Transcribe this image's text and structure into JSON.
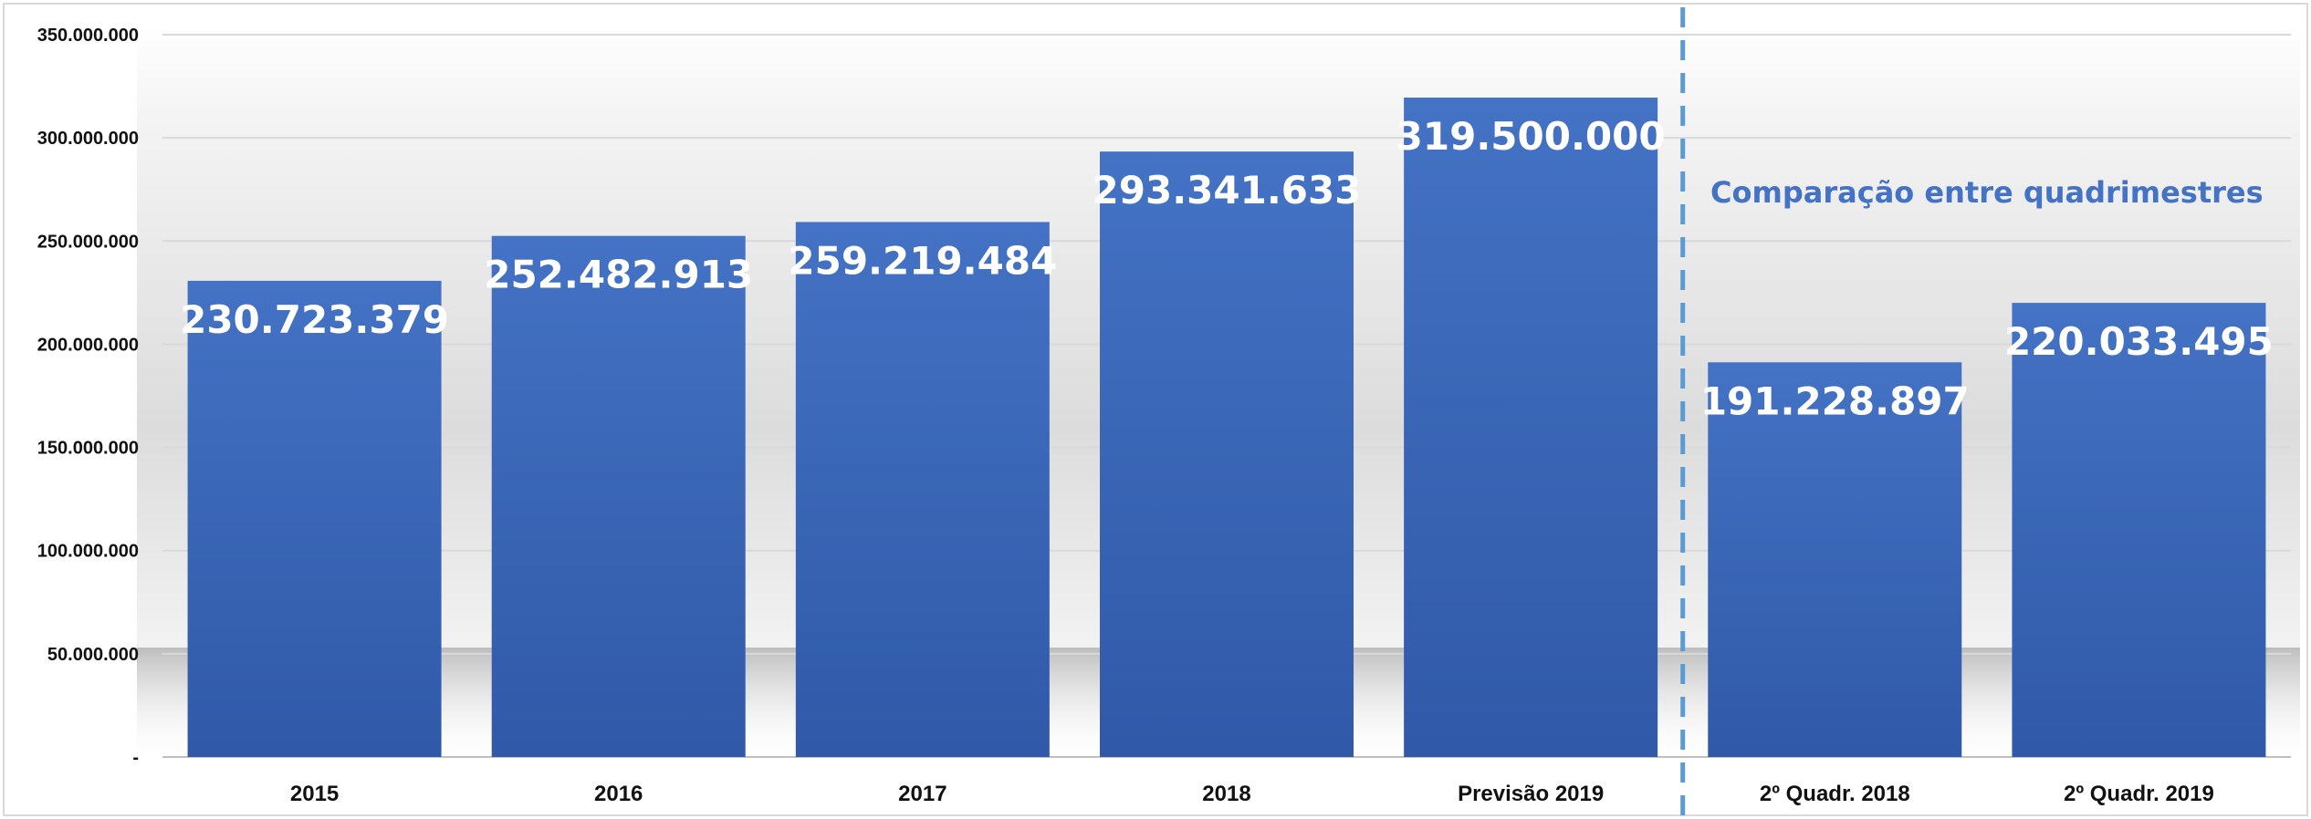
{
  "chart_data": {
    "type": "bar",
    "categories": [
      "2015",
      "2016",
      "2017",
      "2018",
      "Previsão 2019",
      "2º Quadr. 2018",
      "2º Quadr. 2019"
    ],
    "values": [
      230723379,
      252482913,
      259219484,
      293341633,
      319500000,
      191228897,
      220033495
    ],
    "value_labels": [
      "230.723.379",
      "252.482.913",
      "259.219.484",
      "293.341.633",
      "319.500.000",
      "191.228.897",
      "220.033.495"
    ],
    "y_ticks": [
      0,
      50000000,
      100000000,
      150000000,
      200000000,
      250000000,
      300000000,
      350000000
    ],
    "y_tick_labels": [
      "-",
      "50.000.000",
      "100.000.000",
      "150.000.000",
      "200.000.000",
      "250.000.000",
      "300.000.000",
      "350.000.000"
    ],
    "ylim": [
      0,
      350000000
    ],
    "grid": true,
    "separator_after_category": "Previsão 2019",
    "annotation": "Comparação entre quadrimestres",
    "colors": {
      "bar_top": "#4472C4",
      "bar_bottom": "#3059A8",
      "separator": "#5B9BD5",
      "annotation": "#4472C4",
      "grid": "#D9D9D9"
    }
  }
}
